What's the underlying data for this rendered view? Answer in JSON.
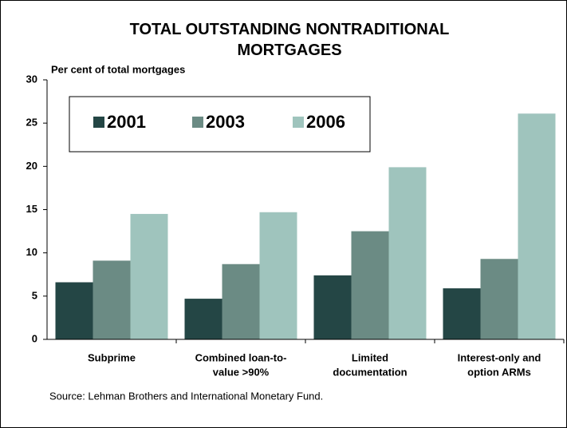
{
  "chart_data": {
    "type": "bar",
    "title": "TOTAL OUTSTANDING NONTRADITIONAL MORTGAGES",
    "y_axis_label": "Per cent of total mortgages",
    "source": "Source: Lehman Brothers and International Monetary Fund.",
    "categories": [
      [
        "Subprime"
      ],
      [
        "Combined loan-to-",
        "value >90%"
      ],
      [
        "Limited",
        "documentation"
      ],
      [
        "Interest-only and",
        "option ARMs"
      ]
    ],
    "series": [
      {
        "name": "2001",
        "color": "#244645",
        "values": [
          6.6,
          4.7,
          7.4,
          5.9
        ]
      },
      {
        "name": "2003",
        "color": "#6b8b84",
        "values": [
          9.1,
          8.7,
          12.5,
          9.3
        ]
      },
      {
        "name": "2006",
        "color": "#9fc4bd",
        "values": [
          14.5,
          14.7,
          19.9,
          26.1
        ]
      }
    ],
    "ylim": [
      0,
      30
    ],
    "yticks": [
      0,
      5,
      10,
      15,
      20,
      25,
      30
    ],
    "grid": false,
    "legend": "top-left"
  }
}
